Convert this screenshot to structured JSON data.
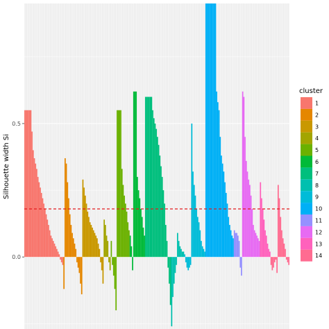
{
  "chart_data": {
    "type": "bar",
    "title": "",
    "xlabel": "",
    "ylabel": "Silhouette width Si",
    "ylim": [
      -0.27,
      0.95
    ],
    "yticks": [
      0.0,
      0.5
    ],
    "ytick_labels": [
      "0.0",
      "0.5"
    ],
    "reference_line": {
      "y": 0.18,
      "color": "#E41A1C",
      "style": "dashed"
    },
    "grid": true,
    "legend": {
      "title": "cluster",
      "placement": "right"
    },
    "series": [
      {
        "name": "1",
        "color": "#F8766D",
        "values": [
          0.55,
          0.55,
          0.55,
          0.55,
          0.55,
          0.55,
          0.47,
          0.4,
          0.37,
          0.35,
          0.33,
          0.3,
          0.28,
          0.26,
          0.24,
          0.22,
          0.2,
          0.18,
          0.16,
          0.14,
          0.12,
          0.1,
          0.08,
          0.07,
          0.06,
          0.05,
          0.04,
          0.03,
          0.02,
          0.01,
          -0.01,
          -0.02,
          -0.03
        ]
      },
      {
        "name": "2",
        "color": "#E58700",
        "values": [
          -0.12,
          0.37,
          0.35,
          0.28,
          0.22,
          0.16,
          0.12,
          0.09,
          0.07,
          0.05,
          0.03,
          -0.02,
          -0.04,
          -0.06,
          -0.1,
          -0.14
        ]
      },
      {
        "name": "3",
        "color": "#C99800",
        "values": [
          0.29,
          0.26,
          0.23,
          0.2,
          0.17,
          0.15,
          0.13,
          0.12,
          0.11,
          0.1,
          0.09,
          0.08,
          0.07,
          0.05,
          0.03,
          -0.02,
          -0.05,
          -0.1
        ]
      },
      {
        "name": "4",
        "color": "#A3A500",
        "values": [
          0.14,
          0.12,
          0.08,
          0.06,
          -0.02,
          -0.05
        ]
      },
      {
        "name": "5",
        "color": "#6BB100",
        "values": [
          0.06,
          -0.03,
          -0.07,
          -0.12,
          -0.2,
          0.55,
          0.55,
          0.55,
          0.55,
          0.33,
          0.27,
          0.23,
          0.2,
          0.17,
          0.13,
          0.1
        ]
      },
      {
        "name": "6",
        "color": "#00BA38",
        "values": [
          0.08,
          0.04,
          -0.05,
          0.62,
          0.62,
          0.62,
          0.3,
          0.25,
          0.22,
          0.18,
          0.15,
          0.11,
          0.08
        ]
      },
      {
        "name": "7",
        "color": "#00BF7D",
        "values": [
          0.6,
          0.6,
          0.6,
          0.6,
          0.6,
          0.6,
          0.55,
          0.52,
          0.5,
          0.48,
          0.45,
          0.42,
          0.38,
          0.34,
          0.3,
          0.25,
          0.2,
          0.12,
          0.06,
          -0.04,
          -0.1,
          -0.18
        ]
      },
      {
        "name": "8",
        "color": "#00C0AF",
        "values": [
          -0.26,
          -0.15,
          -0.1,
          -0.06,
          -0.03,
          0.09,
          0.06,
          0.04,
          0.03,
          0.02,
          0.02
        ]
      },
      {
        "name": "9",
        "color": "#00BCD8",
        "values": [
          0.01,
          -0.02,
          -0.04,
          -0.05,
          -0.04,
          -0.03,
          0.5,
          0.32,
          0.27,
          0.23,
          0.18,
          0.15,
          0.13,
          0.1,
          0.06,
          0.04,
          0.03,
          0.02
        ]
      },
      {
        "name": "10",
        "color": "#00B0F6",
        "values": [
          0.95,
          0.95,
          0.95,
          0.95,
          0.95,
          0.95,
          0.95,
          0.95,
          0.95,
          0.62,
          0.58,
          0.55,
          0.45,
          0.38,
          0.35,
          0.32,
          0.28,
          0.24,
          0.2,
          0.15,
          0.12,
          0.1,
          0.08,
          0.07
        ]
      },
      {
        "name": "11",
        "color": "#9590FF",
        "values": [
          0.1,
          0.09,
          0.09,
          0.08,
          0.06,
          -0.04,
          -0.07
        ]
      },
      {
        "name": "12",
        "color": "#E76BF3",
        "values": [
          0.62,
          0.6,
          0.45,
          0.36,
          0.32,
          0.29,
          0.27,
          0.23,
          0.18,
          0.12,
          0.1,
          0.09,
          0.08,
          0.07,
          0.06
        ]
      },
      {
        "name": "13",
        "color": "#FF62BC",
        "values": [
          0.28,
          0.22,
          0.18,
          0.14,
          0.1,
          0.08,
          0.05,
          0.03,
          0.02
        ]
      },
      {
        "name": "14",
        "color": "#FF6C91",
        "values": [
          -0.03,
          -0.05,
          -0.04,
          -0.02,
          -0.01,
          -0.06,
          0.27,
          0.22,
          0.15,
          0.1,
          0.07,
          0.05,
          0.03,
          -0.01,
          -0.02,
          -0.03
        ]
      }
    ]
  }
}
